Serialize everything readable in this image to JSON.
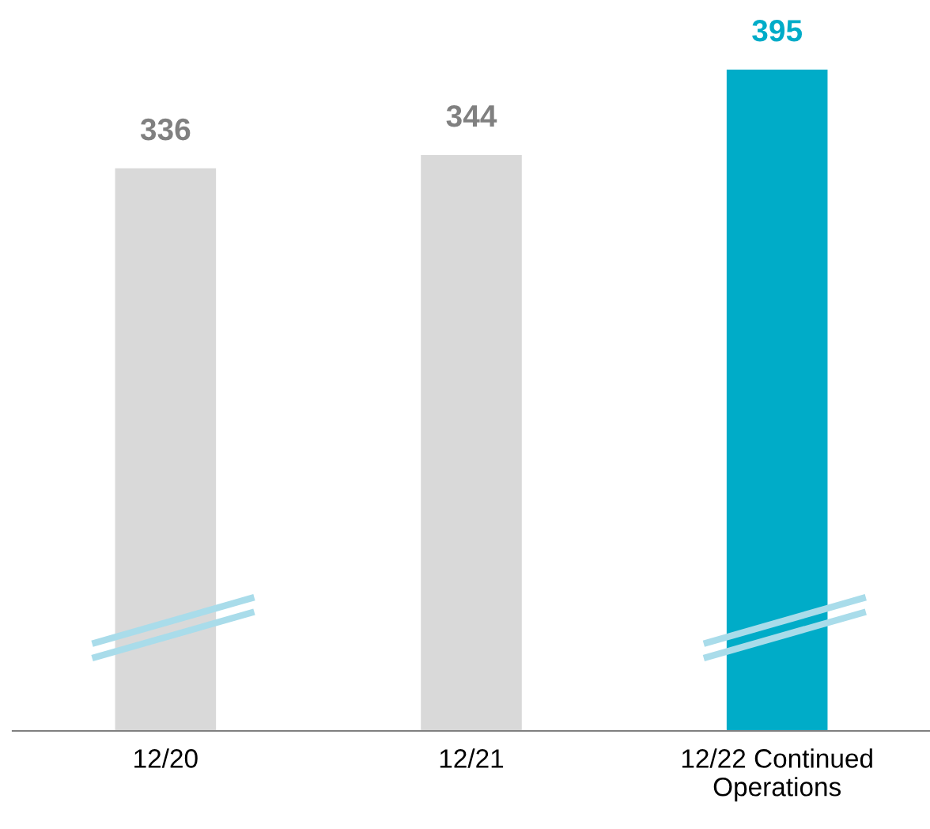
{
  "chart_data": {
    "type": "bar",
    "categories": [
      "12/20",
      "12/21",
      "12/22 Continued\nOperations"
    ],
    "values": [
      336,
      344,
      395
    ],
    "colors": [
      "#d9d9d9",
      "#d9d9d9",
      "#00acc8"
    ],
    "data_labels": true,
    "grid": false,
    "legend": false
  }
}
